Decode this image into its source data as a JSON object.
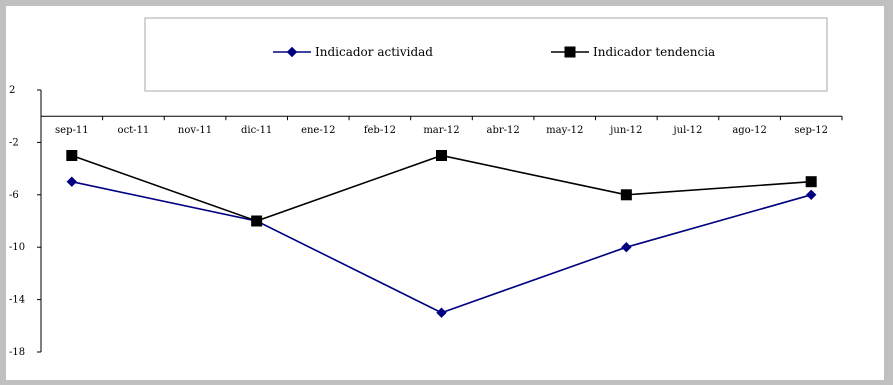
{
  "chart_data": {
    "type": "line",
    "categories": [
      "sep-11",
      "oct-11",
      "nov-11",
      "dic-11",
      "ene-12",
      "feb-12",
      "mar-12",
      "abr-12",
      "may-12",
      "jun-12",
      "jul-12",
      "ago-12",
      "sep-12"
    ],
    "series": [
      {
        "name": "Indicador actividad",
        "color": "#000080",
        "marker": "diamond",
        "values": [
          -5,
          null,
          null,
          -8,
          null,
          null,
          -15,
          null,
          null,
          -10,
          null,
          null,
          -6
        ]
      },
      {
        "name": "Indicador tendencia",
        "color": "#000000",
        "marker": "square",
        "values": [
          -3,
          null,
          null,
          -8,
          null,
          null,
          -3,
          null,
          null,
          -6,
          null,
          null,
          -5
        ]
      }
    ],
    "ylim": [
      -18,
      2
    ],
    "yticks": [
      2,
      -2,
      -6,
      -10,
      -14,
      -18
    ],
    "x_axis_crosses_at": 0,
    "grid": false,
    "legend_position": "top",
    "title": "",
    "xlabel": "",
    "ylabel": ""
  }
}
